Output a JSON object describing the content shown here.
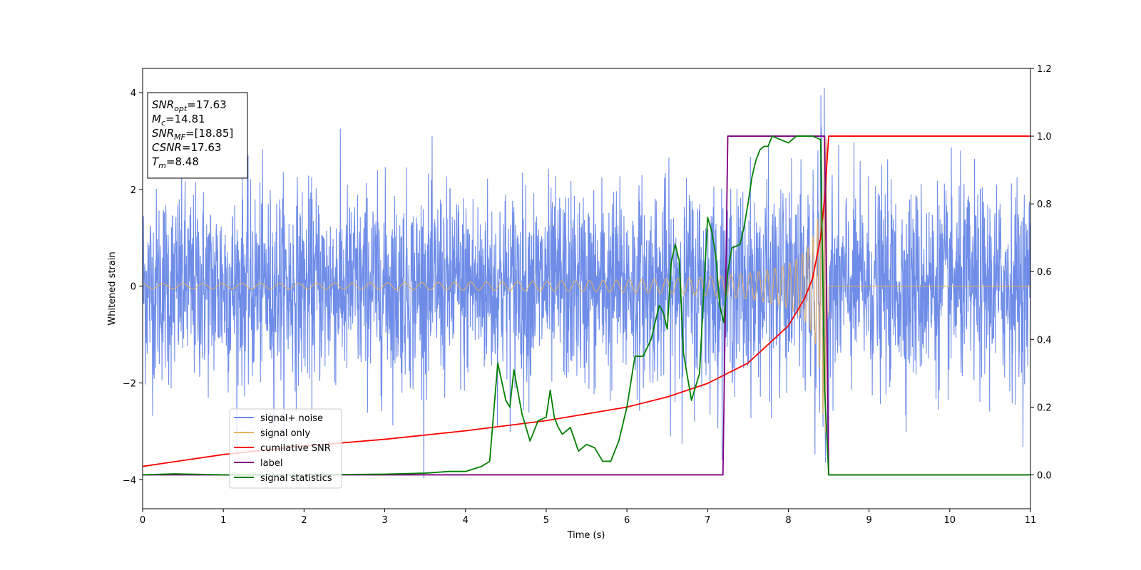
{
  "chart_data": {
    "type": "line",
    "xlabel": "Time (s)",
    "ylabel": "Whitened strain",
    "xlim": [
      0,
      11
    ],
    "ylim": [
      -4.6,
      4.5
    ],
    "y2lim": [
      -0.1,
      1.2
    ],
    "x_ticks": [
      "0",
      "1",
      "2",
      "3",
      "4",
      "5",
      "6",
      "7",
      "8",
      "9",
      "10",
      "11"
    ],
    "y_ticks": [
      "−4",
      "−2",
      "0",
      "2",
      "4"
    ],
    "y2_ticks": [
      "0.0",
      "0.2",
      "0.4",
      "0.6",
      "0.8",
      "1.0",
      "1.2"
    ],
    "legend_position": "lower-left",
    "info_box": {
      "position": "top-left",
      "lines": [
        {
          "base": "SNR",
          "sub": "opt",
          "value": "=17.63"
        },
        {
          "base": "M",
          "sub": "c",
          "value": "=14.81"
        },
        {
          "base": "SNR",
          "sub": "MF",
          "value": "=[18.85]"
        },
        {
          "base": "CSNR",
          "sub": "",
          "value": "=17.63"
        },
        {
          "base": "T",
          "sub": "m",
          "value": "=8.48"
        }
      ]
    },
    "series": [
      {
        "name": "signal+ noise",
        "axis": "left",
        "color": "#6f8de8",
        "description_values": {
          "noise_std": 1.0,
          "typical_peak": 3.2,
          "max_abs": 4.1,
          "merger_time": 8.48
        }
      },
      {
        "name": "signal only",
        "axis": "left",
        "color": "#e8b060",
        "chirp": {
          "start_amplitude": 0.05,
          "peak_amplitude": 3.1,
          "merger_time": 8.48,
          "end_time": 8.5
        }
      },
      {
        "name": "cumilative SNR",
        "axis": "right",
        "color": "#ff0000",
        "x": [
          0,
          1,
          2,
          3,
          4,
          5,
          6,
          6.5,
          7,
          7.5,
          8,
          8.2,
          8.3,
          8.4,
          8.45,
          8.5,
          11
        ],
        "y": [
          0.025,
          0.06,
          0.085,
          0.105,
          0.13,
          0.16,
          0.2,
          0.23,
          0.27,
          0.33,
          0.44,
          0.52,
          0.58,
          0.7,
          0.82,
          1.0,
          1.0
        ]
      },
      {
        "name": "label",
        "axis": "right",
        "color": "#800080",
        "x": [
          0,
          7.19,
          7.25,
          8.45,
          8.5,
          11
        ],
        "y": [
          0.0,
          0.0,
          1.0,
          1.0,
          0.0,
          0.0
        ]
      },
      {
        "name": "signal statistics",
        "axis": "right",
        "color": "#008000",
        "x": [
          0,
          0.4,
          1,
          2,
          3,
          3.5,
          3.8,
          4.0,
          4.2,
          4.3,
          4.4,
          4.5,
          4.55,
          4.6,
          4.7,
          4.8,
          4.9,
          5.0,
          5.05,
          5.1,
          5.15,
          5.2,
          5.3,
          5.4,
          5.5,
          5.6,
          5.7,
          5.8,
          5.9,
          6.0,
          6.1,
          6.2,
          6.3,
          6.4,
          6.45,
          6.5,
          6.55,
          6.6,
          6.65,
          6.7,
          6.8,
          6.9,
          7.0,
          7.05,
          7.1,
          7.15,
          7.2,
          7.25,
          7.3,
          7.4,
          7.45,
          7.5,
          7.55,
          7.6,
          7.65,
          7.7,
          7.75,
          7.8,
          7.9,
          8.0,
          8.1,
          8.2,
          8.3,
          8.4,
          8.45,
          8.5,
          8.55,
          8.6,
          11
        ],
        "y": [
          0.0,
          0.003,
          0.0,
          0.0,
          0.002,
          0.005,
          0.01,
          0.01,
          0.025,
          0.04,
          0.33,
          0.22,
          0.2,
          0.31,
          0.18,
          0.1,
          0.16,
          0.17,
          0.25,
          0.17,
          0.14,
          0.12,
          0.14,
          0.07,
          0.09,
          0.08,
          0.04,
          0.04,
          0.1,
          0.2,
          0.35,
          0.35,
          0.4,
          0.5,
          0.48,
          0.43,
          0.63,
          0.68,
          0.63,
          0.36,
          0.22,
          0.3,
          0.76,
          0.72,
          0.65,
          0.5,
          0.45,
          0.6,
          0.67,
          0.68,
          0.73,
          0.8,
          0.88,
          0.93,
          0.96,
          0.97,
          0.97,
          1.0,
          0.99,
          0.98,
          1.0,
          1.0,
          1.0,
          0.99,
          0.25,
          0.0,
          0.0,
          0.0,
          0.0
        ]
      }
    ]
  }
}
